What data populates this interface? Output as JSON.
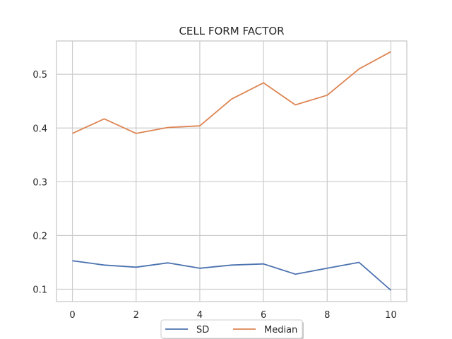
{
  "chart_data": {
    "type": "line",
    "title": "CELL FORM FACTOR",
    "xlabel": "",
    "ylabel": "",
    "x": [
      0,
      1,
      2,
      3,
      4,
      5,
      6,
      7,
      8,
      9,
      10
    ],
    "xticks": [
      0,
      2,
      4,
      6,
      8,
      10
    ],
    "yticks": [
      0.1,
      0.2,
      0.3,
      0.4,
      0.5
    ],
    "xlim": [
      -0.5,
      10.5
    ],
    "ylim": [
      0.077,
      0.562
    ],
    "grid": true,
    "legend_position": "bottom-center",
    "series": [
      {
        "name": "SD",
        "color": "#4c72b0",
        "values": [
          0.153,
          0.145,
          0.141,
          0.149,
          0.139,
          0.145,
          0.147,
          0.128,
          0.139,
          0.15,
          0.098
        ]
      },
      {
        "name": "Median",
        "color": "#dd8452",
        "values": [
          0.39,
          0.417,
          0.39,
          0.401,
          0.404,
          0.454,
          0.484,
          0.443,
          0.461,
          0.51,
          0.542
        ]
      }
    ]
  }
}
